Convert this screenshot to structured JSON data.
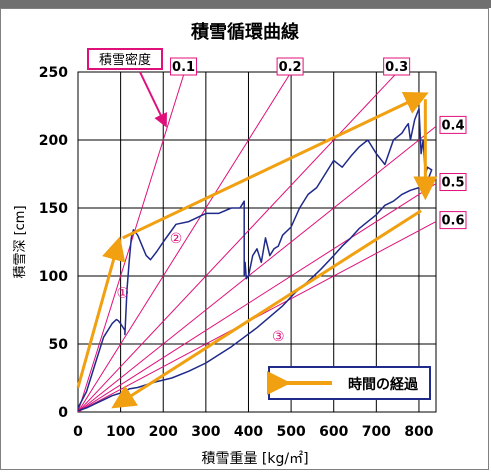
{
  "chart_data": {
    "type": "line",
    "title": "積雪循環曲線",
    "xlabel": "積雪重量 [kg/㎡]",
    "ylabel": "積雪深 [cm]",
    "xlim": [
      0,
      840
    ],
    "ylim": [
      0,
      250
    ],
    "xticks": [
      0,
      100,
      200,
      300,
      400,
      500,
      600,
      700,
      800
    ],
    "yticks": [
      0,
      50,
      100,
      150,
      200,
      250
    ],
    "grid": true,
    "density_lines": {
      "legend_label": "積雪密度",
      "values": [
        0.1,
        0.2,
        0.3,
        0.4,
        0.5,
        0.6
      ],
      "labels": [
        "0.1",
        "0.2",
        "0.3",
        "0.4",
        "0.5",
        "0.6"
      ],
      "color": "#e0107a"
    },
    "series": [
      {
        "color": "#1f2a8a",
        "x": [
          0,
          20,
          40,
          60,
          80,
          90,
          95,
          100,
          110,
          110,
          115,
          120,
          125,
          130,
          140,
          160,
          170,
          185,
          200,
          230,
          260,
          300,
          330,
          360,
          380,
          390,
          390,
          392,
          395,
          400,
          410,
          420,
          430,
          440,
          450,
          460,
          470,
          480,
          500,
          520,
          540,
          560,
          580,
          600,
          620,
          640,
          660,
          680,
          700,
          720,
          740,
          760,
          770,
          775,
          780,
          790,
          800,
          805,
          810,
          815,
          820,
          830,
          820,
          810,
          800,
          780,
          760,
          740,
          720,
          700,
          680,
          660,
          640,
          620,
          600,
          570,
          540,
          510,
          480,
          450,
          420,
          390,
          360,
          330,
          300,
          260,
          220,
          180,
          140,
          120,
          110,
          100,
          80,
          60,
          40,
          20,
          0
        ],
        "y": [
          3,
          15,
          35,
          55,
          65,
          68,
          67,
          65,
          60,
          57,
          90,
          110,
          128,
          134,
          130,
          115,
          112,
          118,
          125,
          138,
          140,
          146,
          146,
          150,
          150,
          155,
          100,
          110,
          98,
          100,
          115,
          120,
          110,
          128,
          115,
          120,
          122,
          130,
          136,
          150,
          160,
          165,
          175,
          185,
          180,
          188,
          195,
          200,
          190,
          182,
          200,
          205,
          210,
          212,
          200,
          215,
          223,
          190,
          200,
          175,
          180,
          178,
          170,
          168,
          165,
          163,
          160,
          155,
          152,
          145,
          140,
          135,
          128,
          122,
          115,
          105,
          96,
          88,
          78,
          70,
          62,
          55,
          48,
          42,
          36,
          30,
          25,
          22,
          18,
          17,
          15,
          14,
          12,
          9,
          6,
          3,
          1
        ]
      }
    ],
    "annotations": [
      {
        "text": "①",
        "x": 105,
        "y": 88,
        "color": "#e0107a"
      },
      {
        "text": "②",
        "x": 230,
        "y": 128,
        "color": "#e0107a"
      },
      {
        "text": "③",
        "x": 470,
        "y": 56,
        "color": "#e0107a"
      }
    ],
    "arrows": {
      "color": "#f0a010",
      "legend_label": "時間の経過",
      "paths": [
        [
          [
            0,
            18
          ],
          [
            95,
            125
          ]
        ],
        [
          [
            105,
            128
          ],
          [
            810,
            233
          ]
        ],
        [
          [
            815,
            230
          ],
          [
            815,
            160
          ]
        ],
        [
          [
            805,
            148
          ],
          [
            90,
            5
          ]
        ]
      ]
    }
  }
}
